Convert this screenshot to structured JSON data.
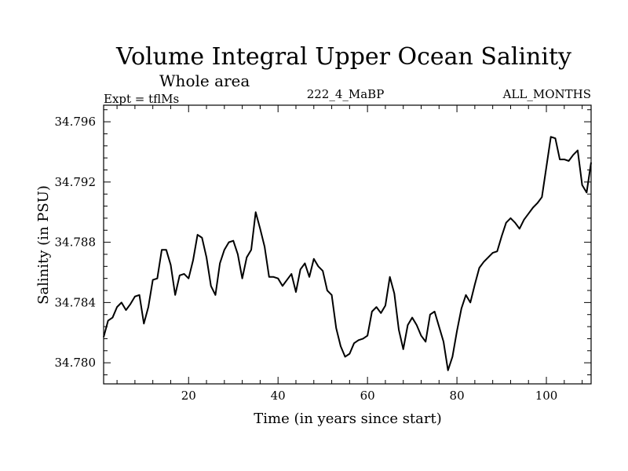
{
  "chart_data": {
    "type": "line",
    "title": "Volume Integral Upper Ocean Salinity",
    "subtitle": "Whole area",
    "left_label": "Expt = tflMs",
    "center_label": "222_4_MaBP",
    "right_label": "ALL_MONTHS",
    "xlabel": "Time (in years since start)",
    "ylabel": "Salinity (in PSU)",
    "xlim": [
      1,
      110
    ],
    "ylim": [
      34.7786,
      34.7971
    ],
    "xticks_major": [
      20,
      40,
      60,
      80,
      100
    ],
    "xticks_minor_step": 4,
    "yticks_major": [
      34.78,
      34.784,
      34.788,
      34.792,
      34.796
    ],
    "ytick_labels": [
      "34.780",
      "34.784",
      "34.788",
      "34.792",
      "34.796"
    ],
    "yticks_minor_step": 0.0008,
    "series": [
      {
        "name": "salinity",
        "color": "#000000",
        "x": [
          1,
          2,
          3,
          4,
          5,
          6,
          7,
          8,
          9,
          10,
          11,
          12,
          13,
          14,
          15,
          16,
          17,
          18,
          19,
          20,
          21,
          22,
          23,
          24,
          25,
          26,
          27,
          28,
          29,
          30,
          31,
          32,
          33,
          34,
          35,
          36,
          37,
          38,
          39,
          40,
          41,
          42,
          43,
          44,
          45,
          46,
          47,
          48,
          49,
          50,
          51,
          52,
          53,
          54,
          55,
          56,
          57,
          58,
          59,
          60,
          61,
          62,
          63,
          64,
          65,
          66,
          67,
          68,
          69,
          70,
          71,
          72,
          73,
          74,
          75,
          76,
          77,
          78,
          79,
          80,
          81,
          82,
          83,
          84,
          85,
          86,
          87,
          88,
          89,
          90,
          91,
          92,
          93,
          94,
          95,
          96,
          97,
          98,
          99,
          100,
          101,
          102,
          103,
          104,
          105,
          106,
          107,
          108,
          109,
          110
        ],
        "values": [
          34.7817,
          34.7828,
          34.783,
          34.7837,
          34.784,
          34.7835,
          34.7839,
          34.7844,
          34.7845,
          34.7826,
          34.7837,
          34.7855,
          34.7856,
          34.7875,
          34.7875,
          34.7865,
          34.7845,
          34.7858,
          34.7859,
          34.7856,
          34.7868,
          34.7885,
          34.7883,
          34.787,
          34.7851,
          34.7845,
          34.7866,
          34.7875,
          34.788,
          34.7881,
          34.7872,
          34.7856,
          34.787,
          34.7875,
          34.79,
          34.7889,
          34.7877,
          34.7857,
          34.7857,
          34.7856,
          34.7851,
          34.7855,
          34.7859,
          34.7847,
          34.7862,
          34.7866,
          34.7857,
          34.7869,
          34.7864,
          34.7861,
          34.7848,
          34.7845,
          34.7823,
          34.7811,
          34.7804,
          34.7806,
          34.7813,
          34.7815,
          34.7816,
          34.7818,
          34.7834,
          34.7837,
          34.7833,
          34.7838,
          34.7857,
          34.7846,
          34.7822,
          34.7809,
          34.7825,
          34.783,
          34.7825,
          34.7818,
          34.7814,
          34.7832,
          34.7834,
          34.7824,
          34.7814,
          34.7795,
          34.7804,
          34.7821,
          34.7836,
          34.7845,
          34.784,
          34.7852,
          34.7863,
          34.7867,
          34.787,
          34.7873,
          34.7874,
          34.7884,
          34.7893,
          34.7896,
          34.7893,
          34.7889,
          34.7895,
          34.7899,
          34.7903,
          34.7906,
          34.791,
          34.793,
          34.795,
          34.7949,
          34.7935,
          34.7935,
          34.7934,
          34.7938,
          34.7941,
          34.7918,
          34.7913,
          34.7933
        ]
      }
    ]
  }
}
